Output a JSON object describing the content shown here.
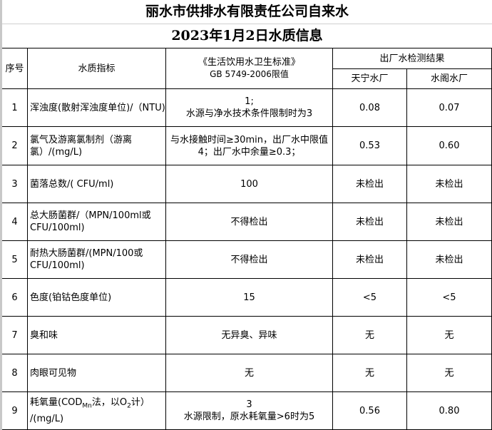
{
  "title": {
    "line1": "丽水市供排水有限责任公司自来水",
    "line2": "2023年1月2日水质信息"
  },
  "header": {
    "seq": "序号",
    "indicator": "水质指标",
    "standard_line1": "《生活饮用水卫生标准》",
    "standard_line2": "GB 5749-2006限值",
    "results": "出厂水检测结果",
    "plant1": "天宁水厂",
    "plant2": "水阁水厂"
  },
  "rows": [
    {
      "seq": "1",
      "indicator": "浑浊度(散射浑浊度单位)/（NTU)",
      "standard": "1;\n水源与净水技术条件限制时为3",
      "plant1": "0.08",
      "plant2": "0.07"
    },
    {
      "seq": "2",
      "indicator": "氯气及游离氯制剂（游离氯）/(mg/L)",
      "standard": "与水接触时间≥30min，出厂水中限值4；出厂水中余量≥0.3；",
      "plant1": "0.53",
      "plant2": "0.60"
    },
    {
      "seq": "3",
      "indicator": "菌落总数/( CFU/ml)",
      "standard": "100",
      "plant1": "未检出",
      "plant2": "未检出"
    },
    {
      "seq": "4",
      "indicator": "总大肠菌群/（MPN/100ml或CFU/100ml)",
      "standard": "不得检出",
      "plant1": "未检出",
      "plant2": "未检出"
    },
    {
      "seq": "5",
      "indicator": "耐热大肠菌群/(MPN/100或CFU/100ml)",
      "standard": "不得检出",
      "plant1": "未检出",
      "plant2": "未检出"
    },
    {
      "seq": "6",
      "indicator": "色度(铂钴色度单位)",
      "standard": "15",
      "plant1": "<5",
      "plant2": "<5"
    },
    {
      "seq": "7",
      "indicator": "臭和味",
      "standard": "无异臭、异味",
      "plant1": "无",
      "plant2": "无"
    },
    {
      "seq": "8",
      "indicator": "肉眼可见物",
      "standard": "无",
      "plant1": "无",
      "plant2": "无"
    },
    {
      "seq": "9",
      "indicator_parts": {
        "a": "耗氧量(COD",
        "sub1": "Mn",
        "b": "法，以O",
        "sub2": "2",
        "c": "计）",
        "d": "/(mg/L)"
      },
      "standard": "3\n水源限制，原水耗氧量>6时为5",
      "plant1": "0.56",
      "plant2": "0.80"
    }
  ]
}
